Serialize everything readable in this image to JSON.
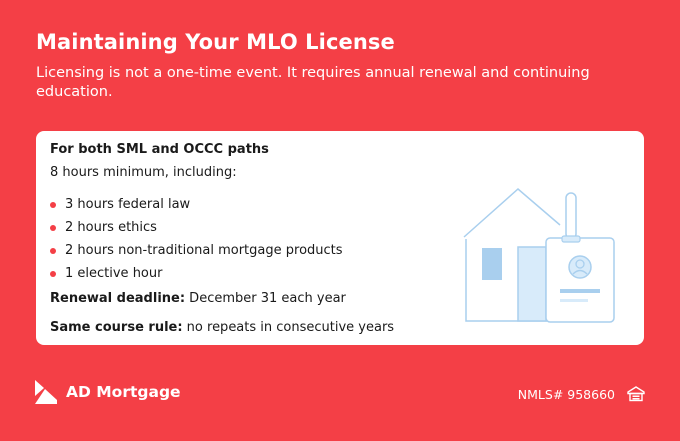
{
  "header": {
    "title": "Maintaining Your MLO License",
    "subtitle": "Licensing is not a one-time event. It requires annual renewal and continuing education."
  },
  "card": {
    "heading": "For both SML and OCCC paths",
    "intro": "8 hours minimum, including:",
    "bullets": [
      "3 hours federal law",
      "2 hours ethics",
      "2 hours non-traditional mortgage products",
      "1 elective hour"
    ],
    "renewal_label": "Renewal deadline:",
    "renewal_value": " December 31 each year",
    "course_label": "Same course rule:",
    "course_value": " no repeats in consecutive years",
    "illustration_icon": "house-license-badge-icon"
  },
  "footer": {
    "brand": "AD Mortgage",
    "nmls": "NMLS# 958660",
    "logo_icon": "ad-mortgage-logo-icon",
    "equal_housing_icon": "equal-housing-icon"
  },
  "colors": {
    "background": "#f43f46",
    "card": "#ffffff",
    "accent": "#f43f46",
    "illustration_line": "#a9cfee",
    "illustration_fill": "#d8ebfa"
  }
}
